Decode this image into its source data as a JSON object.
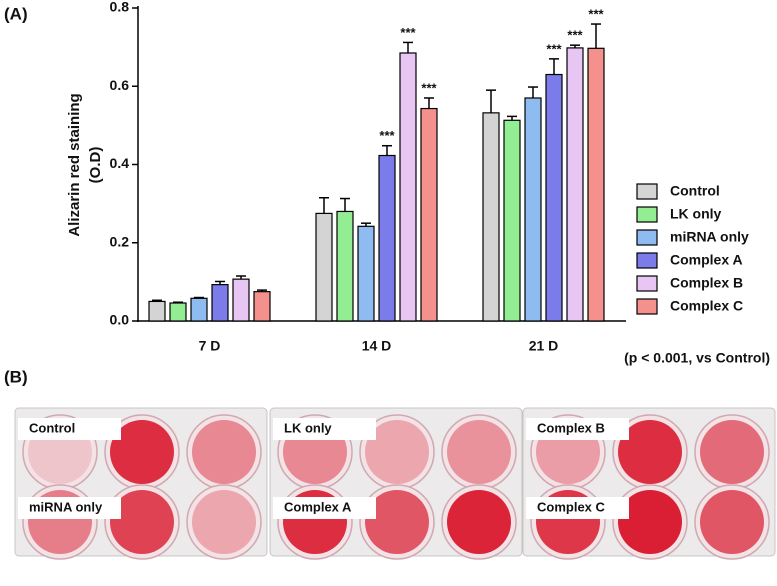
{
  "chart_data": {
    "type": "bar",
    "panel_label": "(A)",
    "ylabel": [
      "Alizarin red staining",
      "(O.D)"
    ],
    "note": "(p < 0.001, vs Control)",
    "categories": [
      "7 D",
      "14 D",
      "21 D"
    ],
    "ylim": [
      0,
      0.8
    ],
    "yticks": [
      {
        "value": 0,
        "label": "0.0"
      },
      0.2,
      0.4,
      0.6,
      0.8
    ],
    "series": [
      {
        "name": "Control",
        "color": "#d4d4d4",
        "values": [
          0.05,
          0.275,
          0.532
        ],
        "errors": [
          0.003,
          0.04,
          0.058
        ],
        "significance": [
          null,
          null,
          null
        ]
      },
      {
        "name": "LK only",
        "color": "#93ee93",
        "values": [
          0.046,
          0.28,
          0.513
        ],
        "errors": [
          0.002,
          0.033,
          0.01
        ],
        "significance": [
          null,
          null,
          null
        ]
      },
      {
        "name": "miRNA only",
        "color": "#8fbcf0",
        "values": [
          0.058,
          0.242,
          0.57
        ],
        "errors": [
          0.002,
          0.008,
          0.028
        ],
        "significance": [
          null,
          null,
          null
        ]
      },
      {
        "name": "Complex A",
        "color": "#7b7bea",
        "values": [
          0.093,
          0.423,
          0.63
        ],
        "errors": [
          0.008,
          0.025,
          0.04
        ],
        "significance": [
          null,
          "***",
          "***"
        ]
      },
      {
        "name": "Complex B",
        "color": "#e8c6f3",
        "values": [
          0.107,
          0.685,
          0.698
        ],
        "errors": [
          0.008,
          0.027,
          0.007
        ],
        "significance": [
          null,
          "***",
          "***"
        ]
      },
      {
        "name": "Complex C",
        "color": "#f4918d",
        "values": [
          0.075,
          0.543,
          0.697
        ],
        "errors": [
          0.004,
          0.027,
          0.062
        ],
        "significance": [
          null,
          "***",
          "***"
        ]
      }
    ]
  },
  "photo_panel": {
    "panel_label": "(B)",
    "plates": [
      {
        "labels": [
          "Control",
          "miRNA only"
        ]
      },
      {
        "labels": [
          "LK only",
          "Complex A"
        ]
      },
      {
        "labels": [
          "Complex B",
          "Complex C"
        ]
      }
    ]
  }
}
